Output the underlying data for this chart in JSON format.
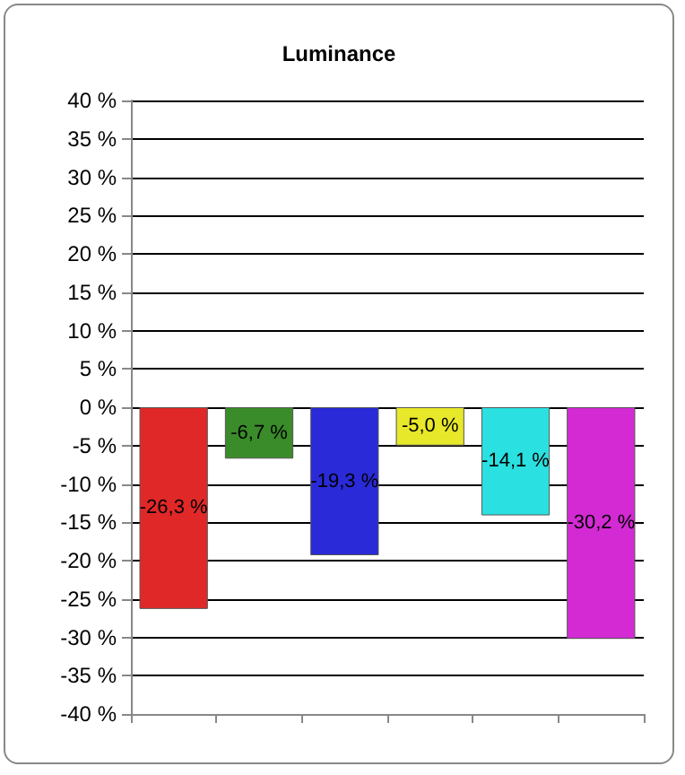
{
  "chart_data": {
    "type": "bar",
    "title": "Luminance",
    "categories": [
      null,
      null,
      null,
      null,
      null,
      null
    ],
    "values": [
      -26.3,
      -6.7,
      -19.3,
      -5.0,
      -14.1,
      -30.2
    ],
    "colors": [
      "#e02828",
      "#3a8c2a",
      "#2a2ad8",
      "#e8e82a",
      "#2ae0e0",
      "#d42ad4"
    ],
    "value_labels": [
      "-26,3 %",
      "-6,7 %",
      "-19,3 %",
      "-5,0 %",
      "-14,1 %",
      "-30,2 %"
    ],
    "ylim": [
      -40,
      40
    ],
    "yticks": [
      {
        "value": -40,
        "label": "-40 %"
      },
      {
        "value": -35,
        "label": "-35 %"
      },
      {
        "value": -30,
        "label": "-30 %"
      },
      {
        "value": -25,
        "label": "-25 %"
      },
      {
        "value": -20,
        "label": "-20 %"
      },
      {
        "value": -15,
        "label": "-15 %"
      },
      {
        "value": -10,
        "label": "-10 %"
      },
      {
        "value": -5,
        "label": "-5 %"
      },
      {
        "value": 0,
        "label": "0 %"
      },
      {
        "value": 5,
        "label": "5 %"
      },
      {
        "value": 10,
        "label": "10 %"
      },
      {
        "value": 15,
        "label": "15 %"
      },
      {
        "value": 20,
        "label": "20 %"
      },
      {
        "value": 25,
        "label": "25 %"
      },
      {
        "value": 30,
        "label": "30 %"
      },
      {
        "value": 35,
        "label": "35 %"
      },
      {
        "value": 40,
        "label": "40 %"
      }
    ],
    "grid": "y"
  }
}
